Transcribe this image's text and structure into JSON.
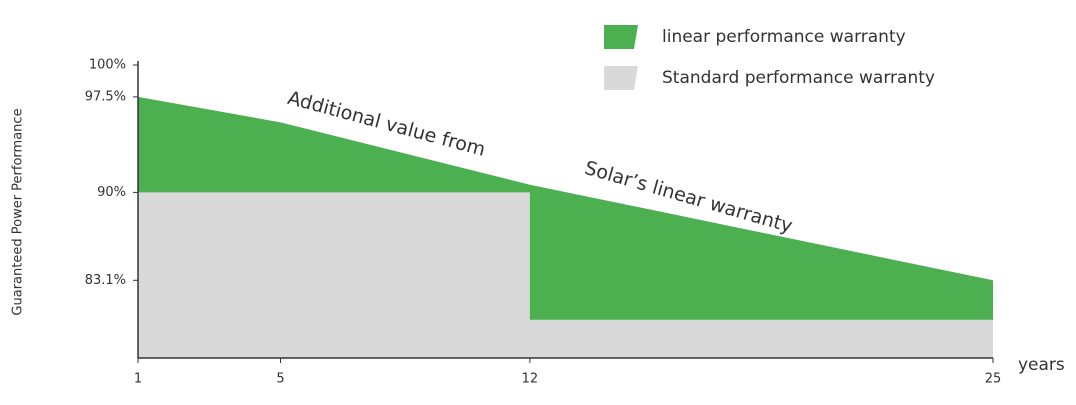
{
  "chart_data": {
    "type": "area",
    "y_label": "Guaranteed Power Performance",
    "x_label": "years",
    "x": [
      1,
      5,
      12,
      25
    ],
    "series": [
      {
        "name": "linear performance warranty",
        "color": "#4caf50",
        "x": [
          1,
          5,
          12,
          25
        ],
        "values": [
          97.5,
          95.5,
          90.6,
          83.1
        ]
      },
      {
        "name": "Standard performance warranty",
        "color": "#d9d9d9",
        "x": [
          1,
          12,
          12,
          25
        ],
        "values": [
          90,
          90,
          80,
          80
        ]
      }
    ],
    "xlim": [
      1,
      25
    ],
    "xticks": [
      1,
      5,
      12,
      25
    ],
    "ylim": [
      77,
      100
    ],
    "yticks": [
      {
        "value": 100,
        "label": "100%"
      },
      {
        "value": 97.5,
        "label": "97.5%"
      },
      {
        "value": 90,
        "label": "90%"
      },
      {
        "value": 83.1,
        "label": "83.1%"
      }
    ],
    "annotations": [
      "Additional value from",
      "Solar’s linear warranty"
    ],
    "legend": "top-right"
  }
}
